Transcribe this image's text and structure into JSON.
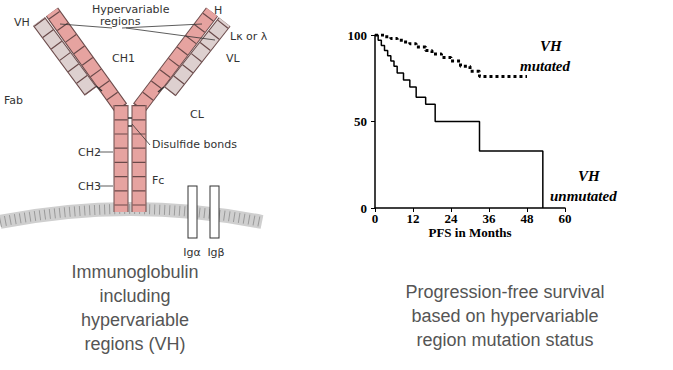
{
  "chart_data": {
    "type": "line",
    "x_label": "PFS in Months",
    "xlim": [
      0,
      60
    ],
    "xticks": [
      0,
      12,
      24,
      36,
      48,
      60
    ],
    "ylim": [
      0,
      100
    ],
    "yticks": [
      0,
      50,
      100
    ],
    "grid": false,
    "series": [
      {
        "name": "VH mutated",
        "color": "#000000",
        "line_style": "dotted",
        "x": [
          0,
          3,
          5,
          7,
          9,
          11,
          13,
          16,
          18,
          21,
          24,
          27,
          30,
          33,
          48
        ],
        "values": [
          100,
          99,
          98,
          97,
          96,
          95,
          93,
          91,
          89,
          87,
          85,
          82,
          79,
          76,
          76
        ]
      },
      {
        "name": "VH unmutated",
        "color": "#000000",
        "line_style": "solid",
        "x": [
          0,
          1,
          2,
          3,
          4,
          5,
          6,
          7,
          9,
          11,
          13,
          16,
          19,
          33,
          53
        ],
        "values": [
          100,
          97,
          94,
          91,
          88,
          85,
          82,
          78,
          74,
          70,
          64,
          60,
          50,
          33,
          0
        ]
      }
    ]
  },
  "diagram": {
    "heavy_chain": "H",
    "light_chain": "Lκ or λ",
    "hypervariable_regions": [
      "Hypervariable",
      "regions"
    ],
    "domains": {
      "VH": "VH",
      "CH1": "CH1",
      "CH2": "CH2",
      "CH3": "CH3",
      "VL": "VL",
      "CL": "CL"
    },
    "fab": "Fab",
    "fc": "Fc",
    "disulfide_bonds": "Disulfide bonds",
    "ig_alpha": "Igα",
    "ig_beta": "Igβ"
  },
  "captions": {
    "diagram": [
      "Immunoglobulin",
      "including",
      "hypervariable",
      "regions (VH)"
    ],
    "chart": [
      "Progression-free survival",
      "based on hypervariable",
      "region mutation status"
    ]
  }
}
